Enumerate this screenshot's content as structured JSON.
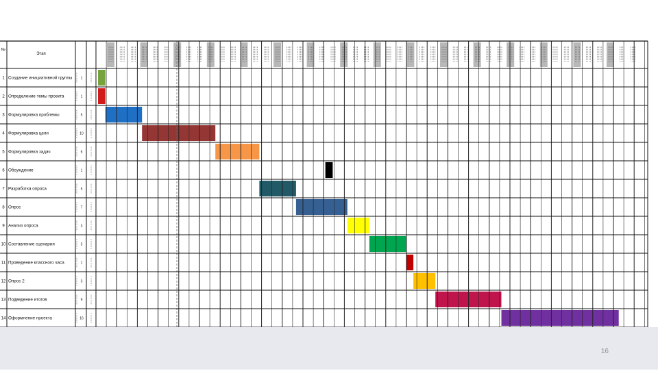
{
  "slide": {
    "page_number": "16"
  },
  "chart_data": {
    "type": "gantt",
    "header": {
      "num_label": "№",
      "name_label": "Этап"
    },
    "day_columns": 50,
    "tasks": [
      {
        "num": "1",
        "name": "Создание инициативной группы",
        "start": 1,
        "duration": 1,
        "color": "#77a33d"
      },
      {
        "num": "2",
        "name": "Определение темы проекта",
        "start": 1,
        "duration": 1,
        "color": "#d11b1b"
      },
      {
        "num": "3",
        "name": "Формулировка проблемы",
        "start": 2,
        "duration": 5,
        "color": "#1f6fc5"
      },
      {
        "num": "4",
        "name": "Формулировка цели",
        "start": 7,
        "duration": 10,
        "color": "#943634"
      },
      {
        "num": "5",
        "name": "Формулировка задач",
        "start": 17,
        "duration": 6,
        "color": "#f79646"
      },
      {
        "num": "6",
        "name": "Обсуждение",
        "start": 32,
        "duration": 1,
        "color": "#000000"
      },
      {
        "num": "7",
        "name": "Разработка опроса",
        "start": 23,
        "duration": 5,
        "color": "#215967"
      },
      {
        "num": "8",
        "name": "Опрос",
        "start": 28,
        "duration": 7,
        "color": "#366092"
      },
      {
        "num": "9",
        "name": "Анализ опроса",
        "start": 35,
        "duration": 3,
        "color": "#ffff00"
      },
      {
        "num": "10",
        "name": "Составление сценария",
        "start": 38,
        "duration": 5,
        "color": "#00a550"
      },
      {
        "num": "11",
        "name": "Проведение классного часа",
        "start": 43,
        "duration": 1,
        "color": "#c00000"
      },
      {
        "num": "12",
        "name": "Опрос 2",
        "start": 44,
        "duration": 3,
        "color": "#ffc000"
      },
      {
        "num": "13",
        "name": "Подведение итогов",
        "start": 47,
        "duration": 9,
        "color": "#c0144c"
      },
      {
        "num": "14",
        "name": "Оформление проекта",
        "start": 56,
        "duration": 16,
        "color": "#7030a0"
      }
    ]
  }
}
